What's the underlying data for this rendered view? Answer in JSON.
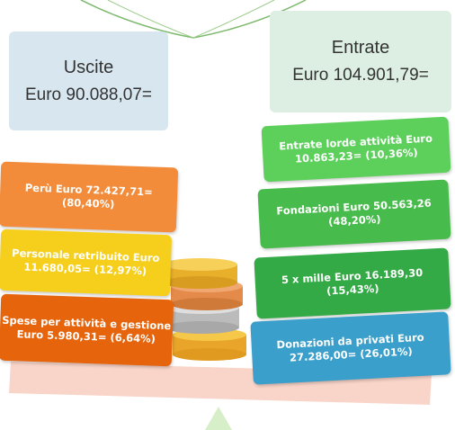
{
  "uscite": {
    "title": "Uscite",
    "amount": "Euro 90.088,07="
  },
  "entrate": {
    "title": "Entrate",
    "amount": "Euro 104.901,79="
  },
  "uscite_items": [
    {
      "lines": [
        "Perù Euro 72.427,71=",
        "(80,40%)"
      ]
    },
    {
      "lines": [
        "Personale retribuito Euro",
        "11.680,05= (12,97%)"
      ]
    },
    {
      "lines": [
        "Spese per attività e gestione",
        "Euro 5.980,31= (6,64%)"
      ]
    }
  ],
  "entrate_items": [
    {
      "lines": [
        "Entrate lorde attività Euro",
        "10.863,23= (10,36%)"
      ]
    },
    {
      "lines": [
        "Fondazioni  Euro 50.563,26",
        "(48,20%)"
      ]
    },
    {
      "lines": [
        "5 x mille Euro 16.189,30",
        "(15,43%)"
      ]
    },
    {
      "lines": [
        "Donazioni  da privati Euro",
        "27.286,00= (26,01%)"
      ]
    }
  ]
}
